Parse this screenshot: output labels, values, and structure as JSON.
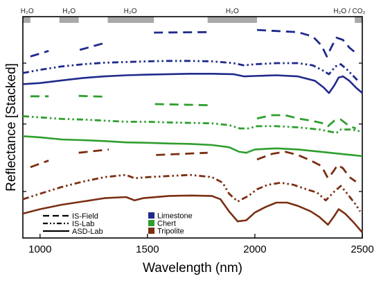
{
  "chart_data": {
    "type": "line",
    "xlabel": "Wavelength (nm)",
    "ylabel": "Reflectance [Stacked]",
    "xlim": [
      920,
      2500
    ],
    "xticks": [
      1000,
      1500,
      2000,
      2500
    ],
    "xtick_labels": [
      "1000",
      "1500",
      "2000",
      "2500"
    ],
    "ylim": [
      0,
      10
    ],
    "yticks_unlabeled": [
      2.1,
      5.15,
      7.9
    ],
    "absorption_bands": [
      {
        "label": "H₂O",
        "x0": 920,
        "x1": 955,
        "label_x": 940
      },
      {
        "label": "H₂O",
        "x0": 1090,
        "x1": 1180,
        "label_x": 1135
      },
      {
        "label": "H₂O",
        "x0": 1315,
        "x1": 1530,
        "label_x": 1420
      },
      {
        "label": "H₂O",
        "x0": 1780,
        "x1": 2010,
        "label_x": 1895
      },
      {
        "label": "H₂O / CO₂",
        "x0": 2465,
        "x1": 2500,
        "label_x": 2440
      }
    ],
    "legend_linestyles": [
      {
        "label": "IS-Field",
        "style": "dashed"
      },
      {
        "label": "IS-Lab",
        "style": "dashdotdot"
      },
      {
        "label": "ASD-Lab",
        "style": "solid"
      }
    ],
    "legend_materials": [
      {
        "label": "Limestone",
        "color": "#1f2a8c"
      },
      {
        "label": "Chert",
        "color": "#2e9e2e"
      },
      {
        "label": "Tripolite",
        "color": "#7a2e12"
      }
    ],
    "series": [
      {
        "material": "Limestone",
        "instrument": "ASD-Lab",
        "style": "solid",
        "color": "#1f2a8c",
        "segments": [
          [
            [
              920,
              6.95
            ],
            [
              1000,
              7.0
            ],
            [
              1100,
              7.12
            ],
            [
              1200,
              7.23
            ],
            [
              1300,
              7.3
            ],
            [
              1400,
              7.35
            ],
            [
              1500,
              7.38
            ],
            [
              1600,
              7.4
            ],
            [
              1700,
              7.42
            ],
            [
              1800,
              7.42
            ],
            [
              1900,
              7.4
            ],
            [
              1950,
              7.3
            ],
            [
              2000,
              7.32
            ],
            [
              2100,
              7.35
            ],
            [
              2200,
              7.3
            ],
            [
              2280,
              7.1
            ],
            [
              2320,
              6.8
            ],
            [
              2345,
              6.55
            ],
            [
              2370,
              6.9
            ],
            [
              2390,
              7.25
            ],
            [
              2410,
              7.3
            ],
            [
              2440,
              7.1
            ],
            [
              2470,
              6.8
            ],
            [
              2500,
              6.55
            ]
          ]
        ]
      },
      {
        "material": "Limestone",
        "instrument": "IS-Lab",
        "style": "dashdotdot",
        "color": "#1f2a8c",
        "segments": [
          [
            [
              920,
              7.45
            ],
            [
              1000,
              7.6
            ],
            [
              1100,
              7.75
            ],
            [
              1200,
              7.85
            ],
            [
              1300,
              7.92
            ],
            [
              1400,
              7.95
            ],
            [
              1500,
              7.98
            ],
            [
              1600,
              8.0
            ],
            [
              1700,
              8.0
            ],
            [
              1800,
              7.98
            ],
            [
              1900,
              7.9
            ],
            [
              1950,
              7.8
            ],
            [
              2000,
              7.85
            ],
            [
              2100,
              7.9
            ],
            [
              2200,
              7.9
            ],
            [
              2270,
              7.8
            ],
            [
              2320,
              7.55
            ],
            [
              2345,
              7.4
            ],
            [
              2375,
              7.75
            ],
            [
              2400,
              7.85
            ],
            [
              2430,
              7.6
            ],
            [
              2460,
              7.3
            ],
            [
              2480,
              7.1
            ]
          ]
        ]
      },
      {
        "material": "Limestone",
        "instrument": "IS-Field",
        "style": "dashed",
        "color": "#1f2a8c",
        "segments": [
          [
            [
              955,
              8.2
            ],
            [
              1040,
              8.45
            ]
          ],
          [
            [
              1185,
              8.5
            ],
            [
              1315,
              8.85
            ]
          ],
          [
            [
              1530,
              9.28
            ],
            [
              1780,
              9.3
            ]
          ],
          [
            [
              2010,
              9.4
            ],
            [
              2100,
              9.35
            ],
            [
              2200,
              9.3
            ],
            [
              2270,
              9.1
            ],
            [
              2310,
              8.7
            ],
            [
              2335,
              8.2
            ],
            [
              2360,
              8.7
            ],
            [
              2380,
              9.05
            ],
            [
              2410,
              8.95
            ],
            [
              2440,
              8.6
            ],
            [
              2465,
              8.4
            ]
          ]
        ]
      },
      {
        "material": "Chert",
        "instrument": "ASD-Lab",
        "style": "solid",
        "color": "#2e9e2e",
        "segments": [
          [
            [
              920,
              4.6
            ],
            [
              1000,
              4.55
            ],
            [
              1100,
              4.45
            ],
            [
              1200,
              4.42
            ],
            [
              1300,
              4.38
            ],
            [
              1400,
              4.32
            ],
            [
              1500,
              4.3
            ],
            [
              1600,
              4.27
            ],
            [
              1700,
              4.25
            ],
            [
              1800,
              4.2
            ],
            [
              1880,
              4.1
            ],
            [
              1925,
              3.9
            ],
            [
              1960,
              3.85
            ],
            [
              2000,
              4.0
            ],
            [
              2100,
              4.05
            ],
            [
              2200,
              4.0
            ],
            [
              2300,
              3.9
            ],
            [
              2400,
              3.8
            ],
            [
              2500,
              3.7
            ]
          ]
        ]
      },
      {
        "material": "Chert",
        "instrument": "IS-Lab",
        "style": "dashdotdot",
        "color": "#2e9e2e",
        "segments": [
          [
            [
              920,
              5.5
            ],
            [
              1000,
              5.45
            ],
            [
              1100,
              5.38
            ],
            [
              1200,
              5.35
            ],
            [
              1300,
              5.3
            ],
            [
              1400,
              5.25
            ],
            [
              1500,
              5.25
            ],
            [
              1600,
              5.22
            ],
            [
              1700,
              5.2
            ],
            [
              1800,
              5.18
            ],
            [
              1880,
              5.1
            ],
            [
              1930,
              4.95
            ],
            [
              1970,
              4.95
            ],
            [
              2010,
              5.05
            ],
            [
              2100,
              5.05
            ],
            [
              2200,
              5.0
            ],
            [
              2300,
              4.9
            ],
            [
              2380,
              4.75
            ],
            [
              2400,
              4.9
            ],
            [
              2450,
              4.9
            ],
            [
              2500,
              4.8
            ]
          ]
        ]
      },
      {
        "material": "Chert",
        "instrument": "IS-Field",
        "style": "dashed",
        "color": "#2e9e2e",
        "segments": [
          [
            [
              955,
              6.4
            ],
            [
              1040,
              6.4
            ]
          ],
          [
            [
              1180,
              6.42
            ],
            [
              1315,
              6.38
            ]
          ],
          [
            [
              1535,
              6.05
            ],
            [
              1780,
              6.0
            ]
          ],
          [
            [
              2010,
              5.4
            ],
            [
              2080,
              5.55
            ],
            [
              2140,
              5.55
            ],
            [
              2200,
              5.4
            ],
            [
              2260,
              5.3
            ],
            [
              2310,
              5.2
            ],
            [
              2340,
              5.05
            ],
            [
              2370,
              5.3
            ],
            [
              2400,
              5.35
            ],
            [
              2440,
              5.05
            ],
            [
              2470,
              4.95
            ]
          ]
        ]
      },
      {
        "material": "Tripolite",
        "instrument": "ASD-Lab",
        "style": "solid",
        "color": "#7a2e12",
        "segments": [
          [
            [
              920,
              1.1
            ],
            [
              1000,
              1.3
            ],
            [
              1100,
              1.5
            ],
            [
              1200,
              1.65
            ],
            [
              1300,
              1.8
            ],
            [
              1400,
              1.85
            ],
            [
              1440,
              1.7
            ],
            [
              1480,
              1.8
            ],
            [
              1600,
              1.9
            ],
            [
              1700,
              1.92
            ],
            [
              1800,
              1.9
            ],
            [
              1840,
              1.75
            ],
            [
              1880,
              1.2
            ],
            [
              1920,
              0.75
            ],
            [
              1960,
              0.8
            ],
            [
              2000,
              1.15
            ],
            [
              2050,
              1.4
            ],
            [
              2100,
              1.6
            ],
            [
              2150,
              1.6
            ],
            [
              2200,
              1.45
            ],
            [
              2260,
              1.2
            ],
            [
              2300,
              0.95
            ],
            [
              2340,
              0.6
            ],
            [
              2370,
              1.0
            ],
            [
              2390,
              1.3
            ],
            [
              2420,
              1.1
            ],
            [
              2460,
              0.7
            ],
            [
              2500,
              0.25
            ]
          ]
        ]
      },
      {
        "material": "Tripolite",
        "instrument": "IS-Lab",
        "style": "dashdotdot",
        "color": "#7a2e12",
        "segments": [
          [
            [
              920,
              1.75
            ],
            [
              1000,
              2.0
            ],
            [
              1100,
              2.3
            ],
            [
              1200,
              2.55
            ],
            [
              1300,
              2.75
            ],
            [
              1400,
              2.85
            ],
            [
              1440,
              2.7
            ],
            [
              1500,
              2.75
            ],
            [
              1600,
              2.8
            ],
            [
              1700,
              2.85
            ],
            [
              1800,
              2.75
            ],
            [
              1850,
              2.5
            ],
            [
              1880,
              2.0
            ],
            [
              1920,
              1.65
            ],
            [
              1970,
              1.9
            ],
            [
              2010,
              2.2
            ],
            [
              2060,
              2.4
            ],
            [
              2120,
              2.5
            ],
            [
              2180,
              2.4
            ],
            [
              2240,
              2.2
            ],
            [
              2290,
              2.05
            ],
            [
              2330,
              1.7
            ],
            [
              2370,
              2.1
            ],
            [
              2400,
              2.35
            ],
            [
              2430,
              2.0
            ],
            [
              2470,
              1.5
            ],
            [
              2490,
              1.2
            ]
          ]
        ]
      },
      {
        "material": "Tripolite",
        "instrument": "IS-Field",
        "style": "dashed",
        "color": "#7a2e12",
        "segments": [
          [
            [
              955,
              3.2
            ],
            [
              1040,
              3.5
            ]
          ],
          [
            [
              1180,
              3.85
            ],
            [
              1320,
              4.0
            ]
          ],
          [
            [
              1540,
              3.75
            ],
            [
              1780,
              3.85
            ]
          ],
          [
            [
              2010,
              3.55
            ],
            [
              2080,
              3.8
            ],
            [
              2140,
              3.9
            ],
            [
              2200,
              3.75
            ],
            [
              2260,
              3.5
            ],
            [
              2310,
              3.25
            ],
            [
              2340,
              2.7
            ],
            [
              2365,
              3.0
            ],
            [
              2385,
              3.3
            ],
            [
              2410,
              3.15
            ],
            [
              2440,
              2.75
            ],
            [
              2470,
              2.55
            ]
          ]
        ]
      }
    ]
  }
}
